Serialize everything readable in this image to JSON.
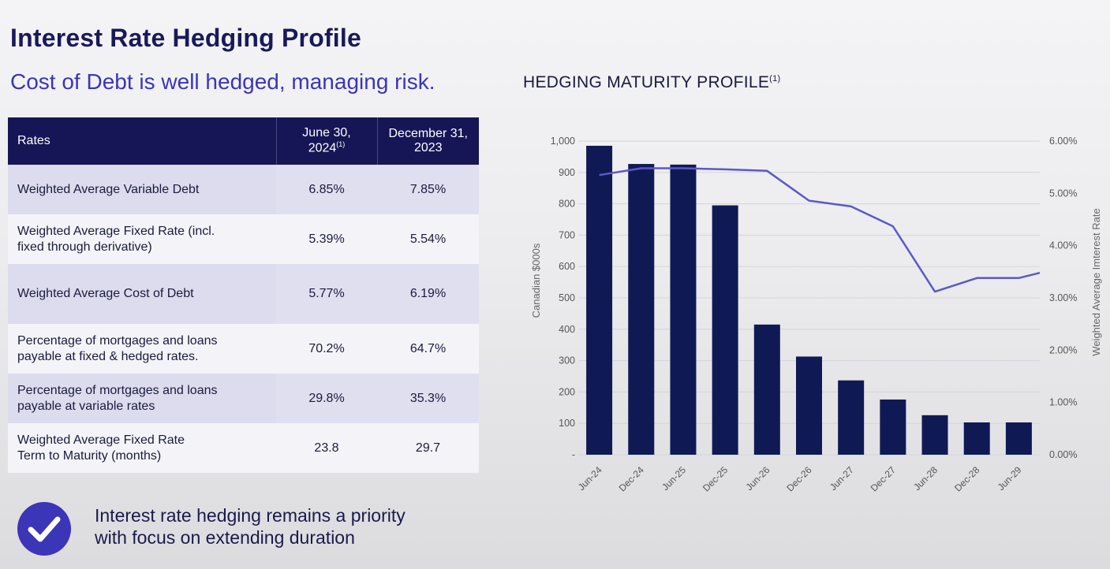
{
  "page": {
    "title": "Interest Rate Hedging Profile",
    "subtitle": "Cost of Debt is well hedged, managing risk.",
    "chart_heading": "HEDGING MATURITY PROFILE",
    "chart_heading_sup": "(1)"
  },
  "table": {
    "headers": {
      "label": "Rates",
      "col1_line1": "June 30,",
      "col1_line2": "2024",
      "col1_sup": "(1)",
      "col2_line1": "December 31,",
      "col2_line2": "2023"
    },
    "rows": [
      {
        "label_line1": "Weighted Average Variable Debt",
        "label_line2": "",
        "v1": "6.85%",
        "v2": "7.85%"
      },
      {
        "label_line1": "Weighted Average Fixed Rate (incl.",
        "label_line2": "fixed through derivative)",
        "v1": "5.39%",
        "v2": "5.54%"
      },
      {
        "label_line1": "Weighted Average Cost of Debt",
        "label_line2": "",
        "v1": "5.77%",
        "v2": "6.19%"
      },
      {
        "label_line1": "Percentage of mortgages and loans",
        "label_line2": "payable at fixed & hedged rates.",
        "v1": "70.2%",
        "v2": "64.7%"
      },
      {
        "label_line1": "Percentage of mortgages and loans",
        "label_line2": "payable at variable rates",
        "v1": "29.8%",
        "v2": "35.3%"
      },
      {
        "label_line1": "Weighted Average Fixed Rate",
        "label_line2": "Term to Maturity (months)",
        "v1": "23.8",
        "v2": "29.7"
      }
    ]
  },
  "note": {
    "icon": "checkmark-icon",
    "line1": "Interest rate hedging remains a priority",
    "line2": "with focus on extending duration"
  },
  "colors": {
    "navy": "#161656",
    "accent": "#3b35b8",
    "bar": "#0f1a55",
    "line": "#5c58c8"
  },
  "chart_data": {
    "type": "bar",
    "categories": [
      "Jun-24",
      "Dec-24",
      "Jun-25",
      "Dec-25",
      "Jun-26",
      "Dec-26",
      "Jun-27",
      "Dec-27",
      "Jun-28",
      "Dec-28",
      "Jun-29"
    ],
    "series": [
      {
        "type": "bar",
        "axis": "left",
        "values": [
          985,
          927,
          925,
          795,
          415,
          313,
          237,
          176,
          126,
          103,
          103
        ]
      },
      {
        "type": "line",
        "axis": "right",
        "values": [
          5.35,
          5.48,
          5.48,
          5.46,
          5.43,
          4.86,
          4.75,
          4.37,
          3.12,
          3.38,
          3.38
        ]
      }
    ],
    "ylabel": "Canadian $000s",
    "y2label": "Weighted Average Imterest Rate",
    "ylim": [
      0,
      1000
    ],
    "yticks": [
      "-",
      "100",
      "200",
      "300",
      "400",
      "500",
      "600",
      "700",
      "800",
      "900",
      "1,000"
    ],
    "y2lim": [
      0,
      6
    ],
    "y2ticks": [
      "0.00%",
      "1.00%",
      "2.00%",
      "3.00%",
      "4.00%",
      "5.00%",
      "6.00%"
    ],
    "grid": true,
    "legend": "none"
  }
}
